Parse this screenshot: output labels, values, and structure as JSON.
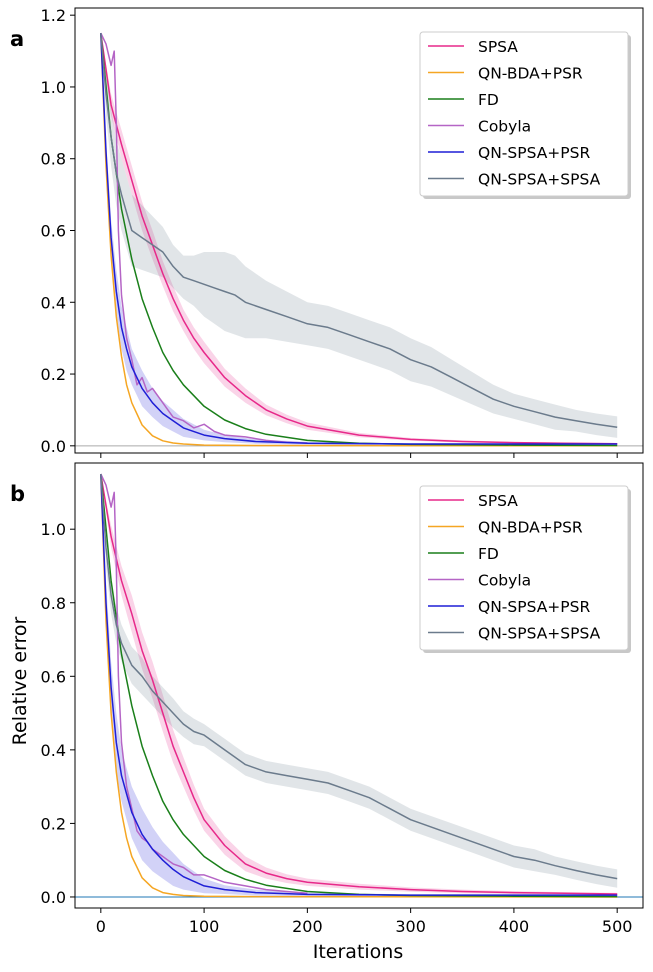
{
  "chart_data": [
    {
      "type": "line",
      "panel_label": "a",
      "xlim": [
        -25,
        525
      ],
      "ylim": [
        -0.02,
        1.22
      ],
      "xticks": [
        0,
        100,
        200,
        300,
        400,
        500
      ],
      "yticks": [
        0.0,
        0.2,
        0.4,
        0.6,
        0.8,
        1.0,
        1.2
      ],
      "ytick_labels": [
        "0.0",
        "0.2",
        "0.4",
        "0.6",
        "0.8",
        "1.0",
        "1.2"
      ],
      "xlabel": "",
      "ylabel": "",
      "baseline_color": "#aaaaaa",
      "legend_position": "top-right",
      "series": [
        {
          "name": "SPSA",
          "color": "#e7298a",
          "band": true,
          "x": [
            0,
            10,
            20,
            30,
            40,
            50,
            60,
            70,
            80,
            90,
            100,
            120,
            140,
            160,
            180,
            200,
            250,
            300,
            350,
            400,
            450,
            500
          ],
          "y": [
            1.15,
            0.95,
            0.84,
            0.74,
            0.64,
            0.56,
            0.48,
            0.41,
            0.35,
            0.3,
            0.26,
            0.19,
            0.14,
            0.1,
            0.075,
            0.055,
            0.03,
            0.018,
            0.012,
            0.009,
            0.007,
            0.006
          ],
          "band_width": [
            0,
            0.03,
            0.04,
            0.04,
            0.04,
            0.04,
            0.035,
            0.035,
            0.03,
            0.03,
            0.03,
            0.025,
            0.02,
            0.015,
            0.012,
            0.01,
            0.006,
            0.004,
            0.003,
            0.002,
            0.002,
            0.002
          ]
        },
        {
          "name": "QN-BDA+PSR",
          "color": "#f5a623",
          "band": false,
          "x": [
            0,
            5,
            10,
            15,
            20,
            25,
            30,
            40,
            50,
            60,
            70,
            80,
            100,
            150,
            500
          ],
          "y": [
            1.15,
            0.78,
            0.53,
            0.36,
            0.25,
            0.17,
            0.12,
            0.058,
            0.028,
            0.014,
            0.008,
            0.005,
            0.002,
            0.001,
            0.0
          ]
        },
        {
          "name": "FD",
          "color": "#1a7f1a",
          "band": false,
          "x": [
            0,
            10,
            20,
            30,
            40,
            50,
            60,
            70,
            80,
            100,
            120,
            140,
            160,
            200,
            250,
            300,
            400,
            500
          ],
          "y": [
            1.15,
            0.86,
            0.66,
            0.52,
            0.41,
            0.33,
            0.26,
            0.21,
            0.17,
            0.11,
            0.072,
            0.048,
            0.032,
            0.015,
            0.007,
            0.004,
            0.002,
            0.001
          ]
        },
        {
          "name": "Cobyla",
          "color": "#b565c6",
          "band": false,
          "x": [
            0,
            5,
            10,
            13,
            15,
            17,
            20,
            25,
            30,
            35,
            40,
            45,
            50,
            55,
            60,
            65,
            70,
            80,
            90,
            100,
            110,
            120,
            140,
            160,
            180,
            200
          ],
          "y": [
            1.15,
            1.12,
            1.06,
            1.1,
            0.9,
            0.6,
            0.42,
            0.3,
            0.24,
            0.17,
            0.19,
            0.15,
            0.16,
            0.14,
            0.12,
            0.1,
            0.08,
            0.07,
            0.05,
            0.06,
            0.04,
            0.03,
            0.025,
            0.015,
            0.01,
            0.008
          ]
        },
        {
          "name": "QN-SPSA+PSR",
          "color": "#1f1fd6",
          "band": true,
          "x": [
            0,
            5,
            10,
            15,
            20,
            25,
            30,
            40,
            50,
            60,
            70,
            80,
            100,
            120,
            150,
            200,
            300,
            400,
            500
          ],
          "y": [
            1.15,
            0.82,
            0.58,
            0.43,
            0.33,
            0.27,
            0.22,
            0.16,
            0.12,
            0.09,
            0.07,
            0.05,
            0.03,
            0.02,
            0.012,
            0.007,
            0.005,
            0.005,
            0.005
          ],
          "band_width": [
            0,
            0.04,
            0.05,
            0.06,
            0.06,
            0.06,
            0.05,
            0.05,
            0.04,
            0.035,
            0.03,
            0.025,
            0.015,
            0.01,
            0.006,
            0.004,
            0.002,
            0.002,
            0.002
          ]
        },
        {
          "name": "QN-SPSA+SPSA",
          "color": "#6b7b8c",
          "band": true,
          "x": [
            0,
            5,
            10,
            15,
            20,
            25,
            30,
            40,
            50,
            60,
            70,
            80,
            90,
            100,
            110,
            120,
            130,
            140,
            160,
            180,
            200,
            220,
            240,
            260,
            280,
            300,
            320,
            340,
            360,
            380,
            400,
            420,
            440,
            460,
            480,
            500
          ],
          "y": [
            1.15,
            0.98,
            0.86,
            0.76,
            0.7,
            0.65,
            0.6,
            0.58,
            0.56,
            0.54,
            0.5,
            0.47,
            0.46,
            0.45,
            0.44,
            0.43,
            0.42,
            0.4,
            0.38,
            0.36,
            0.34,
            0.33,
            0.31,
            0.29,
            0.27,
            0.24,
            0.22,
            0.19,
            0.16,
            0.13,
            0.11,
            0.095,
            0.08,
            0.07,
            0.06,
            0.052
          ],
          "band_width": [
            0,
            0.06,
            0.08,
            0.09,
            0.1,
            0.1,
            0.1,
            0.09,
            0.08,
            0.07,
            0.06,
            0.06,
            0.07,
            0.09,
            0.1,
            0.11,
            0.11,
            0.1,
            0.08,
            0.07,
            0.06,
            0.06,
            0.06,
            0.06,
            0.06,
            0.06,
            0.055,
            0.05,
            0.045,
            0.04,
            0.035,
            0.035,
            0.035,
            0.03,
            0.03,
            0.03
          ]
        }
      ]
    },
    {
      "type": "line",
      "panel_label": "b",
      "xlim": [
        -25,
        525
      ],
      "ylim": [
        -0.03,
        1.18
      ],
      "xticks": [
        0,
        100,
        200,
        300,
        400,
        500
      ],
      "xtick_labels": [
        "0",
        "100",
        "200",
        "300",
        "400",
        "500"
      ],
      "yticks": [
        0.0,
        0.2,
        0.4,
        0.6,
        0.8,
        1.0
      ],
      "ytick_labels": [
        "0.0",
        "0.2",
        "0.4",
        "0.6",
        "0.8",
        "1.0"
      ],
      "xlabel": "Iterations",
      "ylabel": "Relative error",
      "baseline_color": "#1f77b4",
      "legend_position": "top-right",
      "series": [
        {
          "name": "SPSA",
          "color": "#e7298a",
          "band": true,
          "x": [
            0,
            10,
            20,
            30,
            40,
            50,
            60,
            70,
            80,
            90,
            100,
            120,
            140,
            160,
            180,
            200,
            250,
            300,
            350,
            400,
            450,
            500
          ],
          "y": [
            1.15,
            0.98,
            0.86,
            0.77,
            0.67,
            0.59,
            0.5,
            0.41,
            0.34,
            0.27,
            0.21,
            0.14,
            0.09,
            0.065,
            0.05,
            0.04,
            0.028,
            0.02,
            0.015,
            0.012,
            0.01,
            0.008
          ],
          "band_width": [
            0,
            0.03,
            0.04,
            0.05,
            0.05,
            0.05,
            0.05,
            0.045,
            0.04,
            0.035,
            0.03,
            0.025,
            0.02,
            0.015,
            0.012,
            0.01,
            0.008,
            0.006,
            0.005,
            0.004,
            0.003,
            0.003
          ]
        },
        {
          "name": "QN-BDA+PSR",
          "color": "#f5a623",
          "band": false,
          "x": [
            0,
            5,
            10,
            15,
            20,
            25,
            30,
            40,
            50,
            60,
            70,
            80,
            100,
            150,
            500
          ],
          "y": [
            1.15,
            0.75,
            0.5,
            0.34,
            0.23,
            0.16,
            0.11,
            0.052,
            0.025,
            0.012,
            0.007,
            0.004,
            0.002,
            0.001,
            0.0
          ]
        },
        {
          "name": "FD",
          "color": "#1a7f1a",
          "band": false,
          "x": [
            0,
            10,
            20,
            30,
            40,
            50,
            60,
            70,
            80,
            100,
            120,
            140,
            160,
            200,
            250,
            300,
            400,
            500
          ],
          "y": [
            1.15,
            0.86,
            0.66,
            0.52,
            0.41,
            0.33,
            0.26,
            0.21,
            0.17,
            0.11,
            0.072,
            0.048,
            0.032,
            0.015,
            0.007,
            0.004,
            0.002,
            0.001
          ]
        },
        {
          "name": "Cobyla",
          "color": "#b565c6",
          "band": false,
          "x": [
            0,
            5,
            10,
            13,
            15,
            17,
            20,
            25,
            30,
            35,
            40,
            45,
            50,
            55,
            60,
            65,
            70,
            80,
            90,
            100,
            110,
            120,
            140,
            160,
            180,
            200
          ],
          "y": [
            1.15,
            1.12,
            1.06,
            1.1,
            0.9,
            0.6,
            0.42,
            0.3,
            0.24,
            0.18,
            0.16,
            0.15,
            0.13,
            0.12,
            0.11,
            0.1,
            0.09,
            0.08,
            0.06,
            0.06,
            0.05,
            0.04,
            0.03,
            0.02,
            0.015,
            0.01
          ]
        },
        {
          "name": "QN-SPSA+PSR",
          "color": "#1f1fd6",
          "band": true,
          "x": [
            0,
            5,
            10,
            15,
            20,
            25,
            30,
            40,
            50,
            60,
            70,
            80,
            100,
            120,
            150,
            200,
            300,
            400,
            500
          ],
          "y": [
            1.15,
            0.8,
            0.57,
            0.42,
            0.33,
            0.28,
            0.23,
            0.17,
            0.13,
            0.1,
            0.075,
            0.055,
            0.03,
            0.02,
            0.012,
            0.007,
            0.005,
            0.005,
            0.005
          ],
          "band_width": [
            0,
            0.06,
            0.07,
            0.08,
            0.07,
            0.07,
            0.07,
            0.07,
            0.06,
            0.05,
            0.045,
            0.035,
            0.02,
            0.012,
            0.008,
            0.005,
            0.002,
            0.002,
            0.002
          ]
        },
        {
          "name": "QN-SPSA+SPSA",
          "color": "#6b7b8c",
          "band": true,
          "x": [
            0,
            5,
            10,
            15,
            20,
            25,
            30,
            40,
            50,
            60,
            70,
            80,
            90,
            100,
            110,
            120,
            130,
            140,
            160,
            180,
            200,
            220,
            240,
            260,
            280,
            300,
            320,
            340,
            360,
            380,
            400,
            420,
            440,
            460,
            480,
            500
          ],
          "y": [
            1.15,
            0.95,
            0.82,
            0.74,
            0.69,
            0.66,
            0.63,
            0.6,
            0.56,
            0.53,
            0.5,
            0.47,
            0.45,
            0.44,
            0.42,
            0.4,
            0.38,
            0.36,
            0.34,
            0.33,
            0.32,
            0.31,
            0.29,
            0.27,
            0.24,
            0.21,
            0.19,
            0.17,
            0.15,
            0.13,
            0.11,
            0.1,
            0.085,
            0.072,
            0.06,
            0.05
          ],
          "band_width": [
            0,
            0.05,
            0.05,
            0.05,
            0.05,
            0.05,
            0.05,
            0.05,
            0.04,
            0.04,
            0.04,
            0.035,
            0.035,
            0.03,
            0.03,
            0.03,
            0.03,
            0.03,
            0.03,
            0.03,
            0.03,
            0.03,
            0.03,
            0.03,
            0.03,
            0.03,
            0.03,
            0.03,
            0.03,
            0.03,
            0.03,
            0.03,
            0.025,
            0.025,
            0.025,
            0.025
          ]
        }
      ]
    }
  ]
}
